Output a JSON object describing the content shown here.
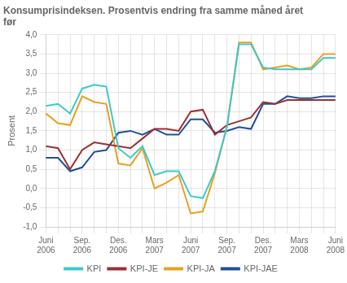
{
  "chart_data": {
    "type": "line",
    "title": "Konsumprisindeksen. Prosentvis endring fra samme måned året\nfør",
    "ylabel": "Prosent",
    "categories": [
      "Juni\n2006",
      null,
      null,
      "Sep.\n2006",
      null,
      null,
      "Des.\n2006",
      null,
      null,
      "Mars\n2007",
      null,
      null,
      "Juni\n2007",
      null,
      null,
      "Sep.\n2007",
      null,
      null,
      "Des.\n2007",
      null,
      null,
      "Mars\n2008",
      null,
      null,
      "Juni\n2008"
    ],
    "series": [
      {
        "name": "KPI",
        "color": "#3ec9c9",
        "values": [
          2.15,
          2.2,
          1.95,
          2.6,
          2.7,
          2.65,
          1.05,
          0.8,
          1.1,
          0.35,
          0.45,
          0.45,
          -0.2,
          -0.25,
          0.45,
          1.6,
          3.75,
          3.75,
          3.15,
          3.1,
          3.1,
          3.1,
          3.1,
          3.4,
          3.4
        ]
      },
      {
        "name": "KPI-JE",
        "color": "#9b3030",
        "values": [
          1.1,
          1.05,
          0.5,
          1.0,
          1.2,
          1.15,
          1.1,
          1.05,
          1.3,
          1.55,
          1.55,
          1.5,
          2.0,
          2.05,
          1.4,
          1.65,
          1.75,
          1.85,
          2.25,
          2.2,
          2.3,
          2.3,
          2.3,
          2.3,
          2.3
        ]
      },
      {
        "name": "KPI-JA",
        "color": "#e8a020",
        "values": [
          1.95,
          1.7,
          1.65,
          2.4,
          2.25,
          2.2,
          0.65,
          0.6,
          1.05,
          0.0,
          0.15,
          0.35,
          -0.65,
          -0.6,
          0.4,
          1.6,
          3.8,
          3.8,
          3.1,
          3.15,
          3.2,
          3.1,
          3.15,
          3.5,
          3.5
        ]
      },
      {
        "name": "KPI-JAE",
        "color": "#1f4e9b",
        "values": [
          0.8,
          0.8,
          0.45,
          0.55,
          0.95,
          1.0,
          1.45,
          1.5,
          1.4,
          1.55,
          1.4,
          1.4,
          1.8,
          1.8,
          1.45,
          1.5,
          1.6,
          1.55,
          2.2,
          2.2,
          2.4,
          2.35,
          2.35,
          2.4,
          2.4
        ]
      }
    ],
    "ylim": [
      -1.0,
      4.0
    ],
    "yticks": [
      {
        "value": -1.0,
        "label": "-1,0"
      },
      {
        "value": -0.5,
        "label": "-0,5"
      },
      {
        "value": 0.0,
        "label": "0,0"
      },
      {
        "value": 0.5,
        "label": "0,5"
      },
      {
        "value": 1.0,
        "label": "1,0"
      },
      {
        "value": 1.5,
        "label": "1,5"
      },
      {
        "value": 2.0,
        "label": "2,0"
      },
      {
        "value": 2.5,
        "label": "2,5"
      },
      {
        "value": 3.0,
        "label": "3,0"
      },
      {
        "value": 3.5,
        "label": "3,5"
      },
      {
        "value": 4.0,
        "label": "4,0"
      }
    ],
    "grid": true,
    "legend": "bottom"
  }
}
